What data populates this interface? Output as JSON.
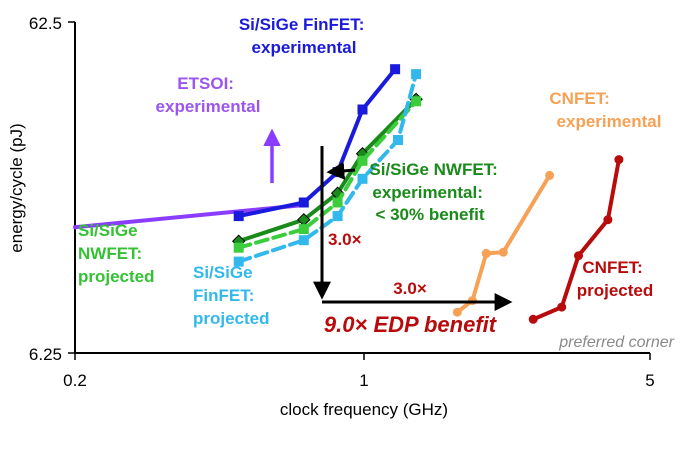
{
  "chart_data": {
    "type": "line",
    "x_scale": "log",
    "y_scale": "log",
    "xlabel": "clock frequency (GHz)",
    "ylabel": "energy/cycle (pJ)",
    "xlim": [
      0.2,
      5
    ],
    "ylim": [
      6.25,
      62.5
    ],
    "x_ticks": [
      {
        "v": 0.2,
        "label": "0.2"
      },
      {
        "v": 1,
        "label": "1"
      },
      {
        "v": 5,
        "label": "5"
      }
    ],
    "y_ticks": [
      {
        "v": 62.5,
        "label": "62.5"
      },
      {
        "v": 6.25,
        "label": "6.25"
      }
    ],
    "series": [
      {
        "name": "ETSOI: experimental",
        "color": "#8b3dff",
        "style": "solid",
        "marker": "none",
        "points": [
          [
            0.2,
            15.0
          ],
          [
            0.72,
            17.5
          ]
        ]
      },
      {
        "name": "Si/SiGe FinFET: experimental",
        "color": "#1a1add",
        "style": "solid",
        "marker": "square",
        "points": [
          [
            0.5,
            16.2
          ],
          [
            0.72,
            17.8
          ],
          [
            0.87,
            22.0
          ],
          [
            1.0,
            34.0
          ],
          [
            1.2,
            45.0
          ]
        ]
      },
      {
        "name": "Si/SiGe NWFET: experimental",
        "color": "#1a8a1a",
        "style": "solid",
        "marker": "diamond",
        "points": [
          [
            0.5,
            13.6
          ],
          [
            0.72,
            15.8
          ],
          [
            0.87,
            19.0
          ],
          [
            1.0,
            25.0
          ],
          [
            1.35,
            36.5
          ]
        ]
      },
      {
        "name": "Si/SiGe NWFET: projected",
        "color": "#3ccd3c",
        "style": "dashed",
        "marker": "square",
        "points": [
          [
            0.5,
            13.0
          ],
          [
            0.72,
            14.8
          ],
          [
            0.87,
            17.8
          ],
          [
            1.0,
            23.8
          ],
          [
            1.35,
            36.0
          ]
        ]
      },
      {
        "name": "Si/SiGe FinFET: projected",
        "color": "#33b8ec",
        "style": "dashed",
        "marker": "square",
        "points": [
          [
            0.5,
            11.8
          ],
          [
            0.72,
            13.7
          ],
          [
            0.87,
            16.2
          ],
          [
            1.0,
            21.0
          ],
          [
            1.22,
            27.5
          ],
          [
            1.35,
            43.5
          ]
        ]
      },
      {
        "name": "CNFET: experimental",
        "color": "#f6a155",
        "style": "solid",
        "marker": "circle",
        "points": [
          [
            1.7,
            8.3
          ],
          [
            1.85,
            9.0
          ],
          [
            2.0,
            12.5
          ],
          [
            2.2,
            12.6
          ],
          [
            2.85,
            21.5
          ]
        ]
      },
      {
        "name": "CNFET: projected",
        "color": "#b80b0b",
        "style": "solid",
        "marker": "circle",
        "points": [
          [
            2.6,
            7.9
          ],
          [
            3.05,
            8.6
          ],
          [
            3.35,
            12.3
          ],
          [
            3.95,
            15.8
          ],
          [
            4.2,
            24.0
          ]
        ]
      }
    ],
    "annotations": {
      "finfet_exp_label": [
        "Si/SiGe FinFET:",
        "experimental"
      ],
      "etsoi_label": [
        "ETSOI:",
        "experimental"
      ],
      "nwfet_exp_label": [
        "Si/SiGe NWFET:",
        "experimental:",
        "< 30% benefit"
      ],
      "nwfet_proj_label": [
        "Si/SiGe",
        "NWFET:",
        "projected"
      ],
      "finfet_proj_label": [
        "Si/SiGe",
        "FinFET:",
        "projected"
      ],
      "cnfet_exp_label": [
        "CNFET:",
        "experimental"
      ],
      "cnfet_proj_label": [
        "CNFET:",
        "projected"
      ],
      "vertical_factor": "3.0×",
      "horizontal_factor": "3.0×",
      "edp_benefit": "9.0× EDP benefit",
      "preferred_corner": "preferred corner"
    },
    "colors": {
      "purple_text": "#9b55f0",
      "blue_text": "#1a1add",
      "green_dark_text": "#1a8a1a",
      "green_light_text": "#34c234",
      "cyan_text": "#33b8ec",
      "orange_text": "#f6a155",
      "red_text": "#b80b0b",
      "gray_text": "#8a8a8a"
    }
  }
}
